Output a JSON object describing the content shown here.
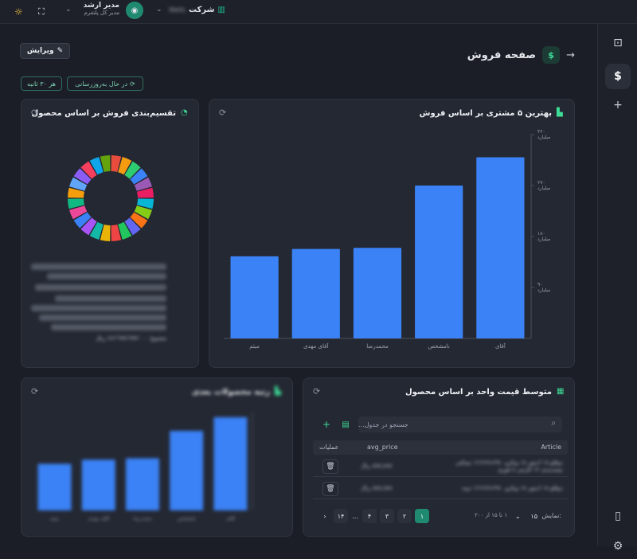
{
  "topbar": {
    "company_label": "شرکت",
    "company_value": "Wells",
    "user_name": "مدیر ارشد",
    "user_role": "مدیر کل پلتفرم"
  },
  "page": {
    "title": "صفحه فروش",
    "edit_label": "ویرایش",
    "status_pill": "در حال به‌روزرسانی",
    "interval_pill": "هر ۳۰ ثانیه"
  },
  "cards": {
    "bar_main": {
      "title": "بهترین ۵ مشتری بر اساس فروش",
      "y_ticks": [
        "۳۶۰ میلیارد",
        "۲۷۰ میلیارد",
        "۱۸۰ میلیارد",
        "۹۰ میلیارد"
      ]
    },
    "donut": {
      "title": "تقسیم‌بندی فروش بر اساس محصول",
      "total_text": "مجموع ۶۶۶٬۹۹۹٬۹۹۹٬۰۰۰ ریال"
    },
    "table": {
      "title": "متوسط قیمت واحد بر اساس محصول",
      "search_placeholder": "جستجو در جدول...",
      "columns": {
        "article": "Article",
        "avg_price": "avg_price",
        "actions": "عملیات"
      },
      "rows": [
        {
          "article": "دوقلو ۱۸ ادیتور ۱۸ ویکرو ۳۸۰×۲۸×۱۶ نیمکتی بسته‌بندی ۱۲ کارتنی ۸ قوری",
          "avg_price": "۸۸۸,۸۸۸ ریال"
        },
        {
          "article": "دوقلو ۱۸ ادیتور ۱۸ ویکرو ۳۸۰×۲۸×۱۶ دونه",
          "avg_price": "۸۸۸,۸۸۸ ریال"
        }
      ],
      "page_size_label": "نمایش:",
      "page_size": "۱۵",
      "range_text": "۱ تا ۱۵ از ۲۰۰",
      "pages": [
        "۱",
        "۲",
        "۳",
        "۴",
        "...",
        "۱۴"
      ]
    },
    "blur_chart": {
      "title": "رتبه محصولات بعدی"
    }
  },
  "chart_data": [
    {
      "type": "bar",
      "title": "بهترین ۵ مشتری بر اساس فروش",
      "categories": [
        "آقای",
        "نامشخص",
        "محمدرضا",
        "آقای مهدی",
        "میثم"
      ],
      "values": [
        320,
        270,
        160,
        158,
        145
      ],
      "ylim": [
        0,
        360
      ],
      "y_tick_labels": [
        "۹۰ میلیارد",
        "۱۸۰ میلیارد",
        "۲۷۰ میلیارد",
        "۳۶۰ میلیارد"
      ]
    },
    {
      "type": "pie",
      "title": "تقسیم‌بندی فروش بر اساس محصول",
      "donut": true,
      "slice_colors": [
        "#e74c3c",
        "#f39c12",
        "#2ecc71",
        "#3b82f6",
        "#9b59b6",
        "#e91e63",
        "#06b6d4",
        "#84cc16",
        "#f97316",
        "#6366f1",
        "#22c55e",
        "#ef4444",
        "#eab308",
        "#14b8a6",
        "#a855f7",
        "#3b82f6",
        "#ec4899",
        "#10b981",
        "#f59e0b",
        "#60a5fa",
        "#8b5cf6",
        "#f43f5e",
        "#0ea5e9",
        "#65a30d"
      ],
      "values": [
        1,
        1,
        1,
        1,
        1,
        1,
        1,
        1,
        1,
        1,
        1,
        1,
        1,
        1,
        1,
        1,
        1,
        1,
        1,
        1,
        1,
        1,
        1,
        1
      ]
    },
    {
      "type": "bar",
      "title": "رتبه محصولات بعدی",
      "categories": [
        "آقای",
        "نامشخص",
        "محمدرضا",
        "آقای مهدی",
        "میثم"
      ],
      "values": [
        340,
        290,
        190,
        185,
        170
      ],
      "ylim": [
        0,
        360
      ]
    }
  ]
}
